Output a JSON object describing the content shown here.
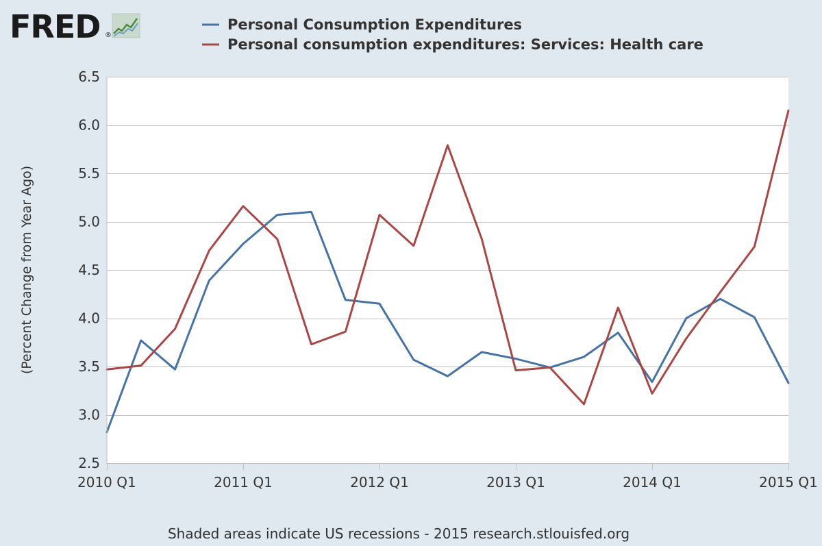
{
  "logo": {
    "text": "FRED",
    "mark": "®",
    "icon": "trend-graph-icon"
  },
  "chart_data": {
    "type": "line",
    "title": "",
    "xlabel": "",
    "ylabel": "(Percent Change from Year Ago)",
    "ylim": [
      2.5,
      6.5
    ],
    "yticks": [
      "2.5",
      "3.0",
      "3.5",
      "4.0",
      "4.5",
      "5.0",
      "5.5",
      "6.0",
      "6.5"
    ],
    "xlim": [
      0,
      20
    ],
    "xtick_labels": [
      "2010 Q1",
      "2011 Q1",
      "2012 Q1",
      "2013 Q1",
      "2014 Q1",
      "2015 Q1"
    ],
    "x": [
      "2010 Q1",
      "2010 Q2",
      "2010 Q3",
      "2010 Q4",
      "2011 Q1",
      "2011 Q2",
      "2011 Q3",
      "2011 Q4",
      "2012 Q1",
      "2012 Q2",
      "2012 Q3",
      "2012 Q4",
      "2013 Q1",
      "2013 Q2",
      "2013 Q3",
      "2013 Q4",
      "2014 Q1",
      "2014 Q2",
      "2014 Q3",
      "2014 Q4",
      "2015 Q1"
    ],
    "grid": true,
    "series": [
      {
        "name": "Personal Consumption Expenditures",
        "color": "#4572a7",
        "values": [
          2.82,
          3.77,
          3.47,
          4.39,
          4.77,
          5.07,
          5.1,
          4.19,
          4.15,
          3.57,
          3.4,
          3.65,
          3.58,
          3.49,
          3.6,
          3.85,
          3.34,
          4.0,
          4.2,
          4.01,
          3.33
        ]
      },
      {
        "name": "Personal consumption expenditures: Services: Health care",
        "color": "#aa4643",
        "values": [
          3.47,
          3.51,
          3.89,
          4.7,
          5.16,
          4.82,
          3.73,
          3.86,
          5.07,
          4.75,
          5.79,
          4.82,
          3.46,
          3.49,
          3.11,
          4.11,
          3.22,
          3.79,
          4.27,
          4.74,
          6.15
        ]
      }
    ],
    "legend": "top-left"
  },
  "footer": {
    "note": "Shaded areas indicate US recessions - 2015 research.stlouisfed.org"
  },
  "colors": {
    "background": "#e1e9f0",
    "plot_background": "#ffffff",
    "grid": "#c0c0c0"
  }
}
